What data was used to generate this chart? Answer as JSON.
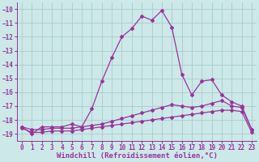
{
  "xlabel": "Windchill (Refroidissement éolien,°C)",
  "bg_color": "#cce8e8",
  "grid_color": "#aacccc",
  "line_color": "#993399",
  "ylim": [
    -19.5,
    -9.5
  ],
  "xlim": [
    -0.5,
    23.5
  ],
  "yticks": [
    -19,
    -18,
    -17,
    -16,
    -15,
    -14,
    -13,
    -12,
    -11,
    -10
  ],
  "xticks": [
    0,
    1,
    2,
    3,
    4,
    5,
    6,
    7,
    8,
    9,
    10,
    11,
    12,
    13,
    14,
    15,
    16,
    17,
    18,
    19,
    20,
    21,
    22,
    23
  ],
  "series": [
    {
      "x": [
        0,
        1,
        2,
        3,
        4,
        5,
        6,
        7,
        8,
        9,
        10,
        11,
        12,
        13,
        14,
        15,
        16,
        17,
        18,
        19,
        20,
        21,
        22,
        23
      ],
      "y": [
        -18.5,
        -19.0,
        -18.5,
        -18.5,
        -18.5,
        -18.3,
        -18.5,
        -17.2,
        -15.2,
        -13.5,
        -12.0,
        -11.4,
        -10.5,
        -10.8,
        -10.1,
        -11.3,
        -14.7,
        -16.2,
        -15.2,
        -15.1,
        -16.2,
        -16.7,
        -17.0,
        -18.7
      ],
      "marker": "D",
      "markersize": 2,
      "linewidth": 0.9
    },
    {
      "x": [
        0,
        1,
        2,
        3,
        4,
        5,
        6,
        7,
        8,
        9,
        10,
        11,
        12,
        13,
        14,
        15,
        16,
        17,
        18,
        19,
        20,
        21,
        22,
        23
      ],
      "y": [
        -18.5,
        -18.7,
        -18.7,
        -18.6,
        -18.6,
        -18.6,
        -18.5,
        -18.4,
        -18.3,
        -18.1,
        -17.9,
        -17.7,
        -17.5,
        -17.3,
        -17.1,
        -16.9,
        -17.0,
        -17.1,
        -17.0,
        -16.8,
        -16.6,
        -17.0,
        -17.1,
        -18.7
      ],
      "marker": "D",
      "markersize": 2,
      "linewidth": 0.9
    },
    {
      "x": [
        0,
        1,
        2,
        3,
        4,
        5,
        6,
        7,
        8,
        9,
        10,
        11,
        12,
        13,
        14,
        15,
        16,
        17,
        18,
        19,
        20,
        21,
        22,
        23
      ],
      "y": [
        -18.6,
        -18.9,
        -18.9,
        -18.8,
        -18.8,
        -18.8,
        -18.7,
        -18.6,
        -18.5,
        -18.4,
        -18.3,
        -18.2,
        -18.1,
        -18.0,
        -17.9,
        -17.8,
        -17.7,
        -17.6,
        -17.5,
        -17.4,
        -17.3,
        -17.3,
        -17.4,
        -18.9
      ],
      "marker": "D",
      "markersize": 2,
      "linewidth": 0.9
    }
  ],
  "tick_fontsize": 5.5,
  "xlabel_fontsize": 6.5,
  "font_color": "#993399"
}
